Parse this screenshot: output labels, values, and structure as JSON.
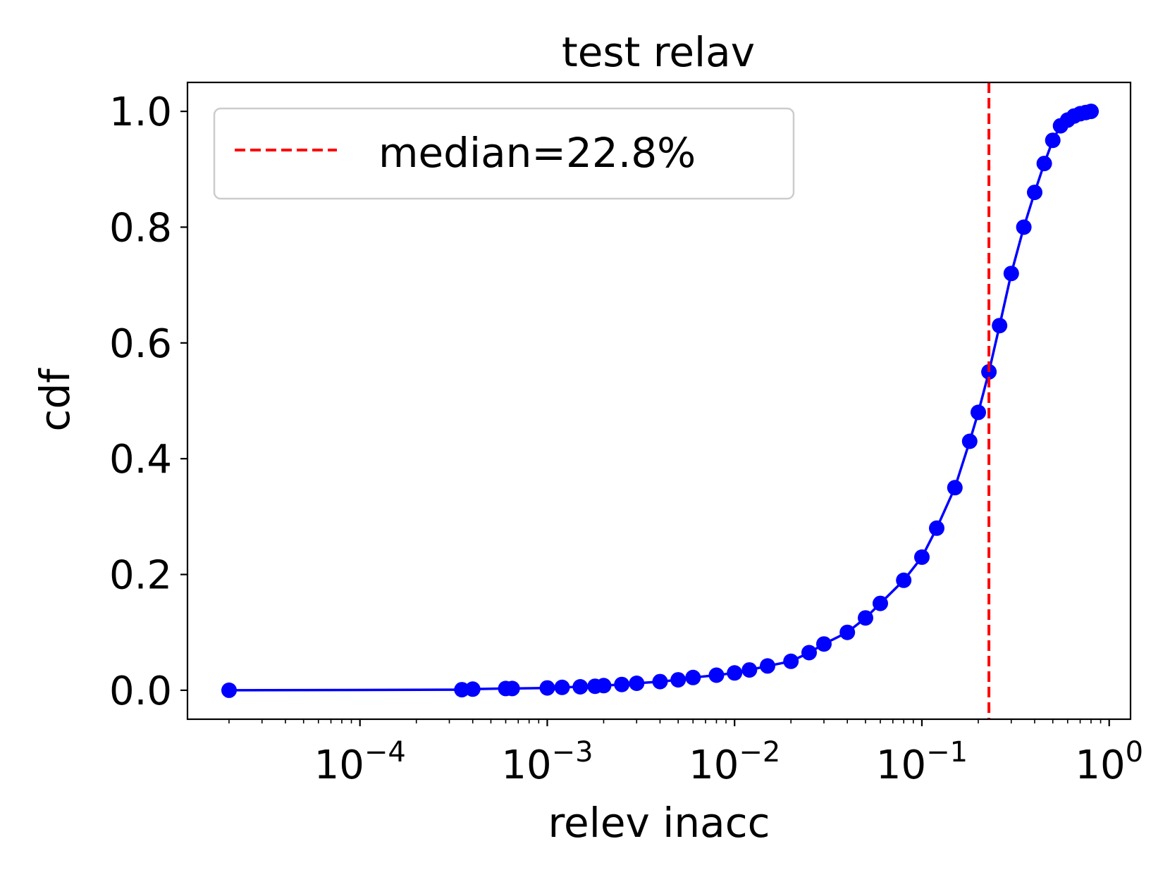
{
  "chart_data": {
    "type": "line",
    "title": "test relav",
    "xlabel": "relev inacc",
    "ylabel": "cdf",
    "xscale": "log",
    "xlim": [
      1.2e-05,
      1.3
    ],
    "ylim": [
      -0.05,
      1.05
    ],
    "x_ticks": [
      {
        "value": 0.0001,
        "base": "10",
        "exp": "−4"
      },
      {
        "value": 0.001,
        "base": "10",
        "exp": "−3"
      },
      {
        "value": 0.01,
        "base": "10",
        "exp": "−2"
      },
      {
        "value": 0.1,
        "base": "10",
        "exp": "−1"
      },
      {
        "value": 1,
        "base": "10",
        "exp": "0"
      }
    ],
    "y_ticks": [
      {
        "value": 0.0,
        "label": "0.0"
      },
      {
        "value": 0.2,
        "label": "0.2"
      },
      {
        "value": 0.4,
        "label": "0.4"
      },
      {
        "value": 0.6,
        "label": "0.6"
      },
      {
        "value": 0.8,
        "label": "0.8"
      },
      {
        "value": 1.0,
        "label": "1.0"
      }
    ],
    "grid": false,
    "legend_position": "upper-left",
    "series": [
      {
        "color": "#0000ff",
        "marker": "circle",
        "x": [
          2e-05,
          0.00035,
          0.0004,
          0.0006,
          0.00065,
          0.001,
          0.0012,
          0.0015,
          0.0018,
          0.002,
          0.0025,
          0.003,
          0.004,
          0.005,
          0.006,
          0.008,
          0.01,
          0.012,
          0.015,
          0.02,
          0.025,
          0.03,
          0.04,
          0.05,
          0.06,
          0.08,
          0.1,
          0.12,
          0.15,
          0.18,
          0.2,
          0.228,
          0.26,
          0.3,
          0.35,
          0.4,
          0.45,
          0.5,
          0.55,
          0.6,
          0.65,
          0.7,
          0.75,
          0.8
        ],
        "y": [
          0.0,
          0.001,
          0.002,
          0.003,
          0.003,
          0.004,
          0.005,
          0.006,
          0.007,
          0.008,
          0.01,
          0.012,
          0.015,
          0.018,
          0.022,
          0.026,
          0.03,
          0.035,
          0.042,
          0.05,
          0.065,
          0.08,
          0.1,
          0.125,
          0.15,
          0.19,
          0.23,
          0.28,
          0.35,
          0.43,
          0.48,
          0.55,
          0.63,
          0.72,
          0.8,
          0.86,
          0.91,
          0.95,
          0.975,
          0.985,
          0.992,
          0.996,
          0.998,
          1.0
        ]
      }
    ],
    "median_line": {
      "x": 0.228,
      "color": "#ff0000",
      "label": "median=22.8%"
    }
  }
}
